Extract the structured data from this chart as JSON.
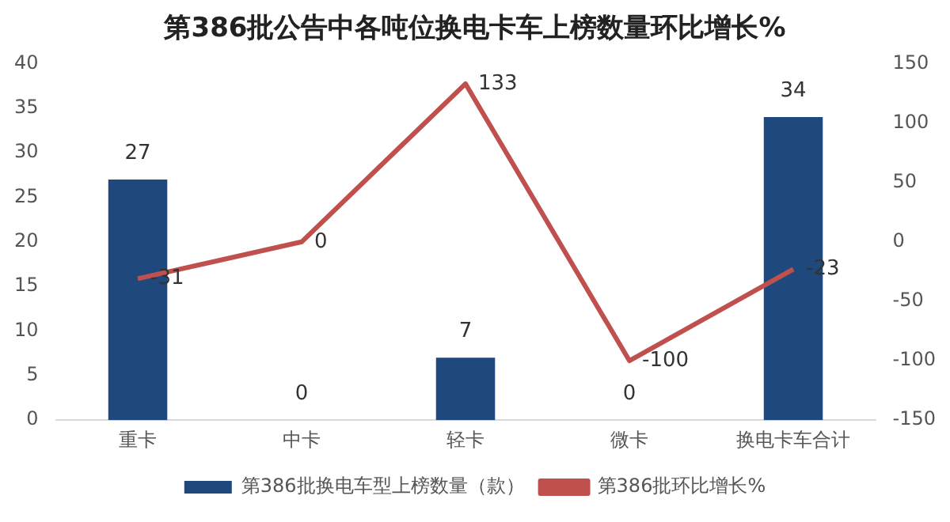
{
  "chart_data": {
    "type": "bar",
    "title": "第386批公告中各吨位换电卡车上榜数量环比增长%",
    "categories": [
      "重卡",
      "中卡",
      "轻卡",
      "微卡",
      "换电卡车合计"
    ],
    "series": [
      {
        "name": "第386批换电车型上榜数量（款）",
        "color": "#1f497d",
        "values": [
          27,
          0,
          7,
          0,
          34
        ]
      },
      {
        "name": "第386批环比增长%",
        "type": "line",
        "axis": "y2",
        "color": "#c0504d",
        "values": [
          -31,
          0,
          133,
          -100,
          -23
        ]
      }
    ],
    "ylim": [
      0,
      40
    ],
    "yticks": [
      0,
      5,
      10,
      15,
      20,
      25,
      30,
      35,
      40
    ],
    "y2lim": [
      -150,
      150
    ],
    "y2ticks": [
      -150,
      -100,
      -50,
      0,
      50,
      100,
      150
    ],
    "grid": false,
    "legend": "bottom",
    "marker": "none",
    "line_style": "solid",
    "data_labels": true
  }
}
